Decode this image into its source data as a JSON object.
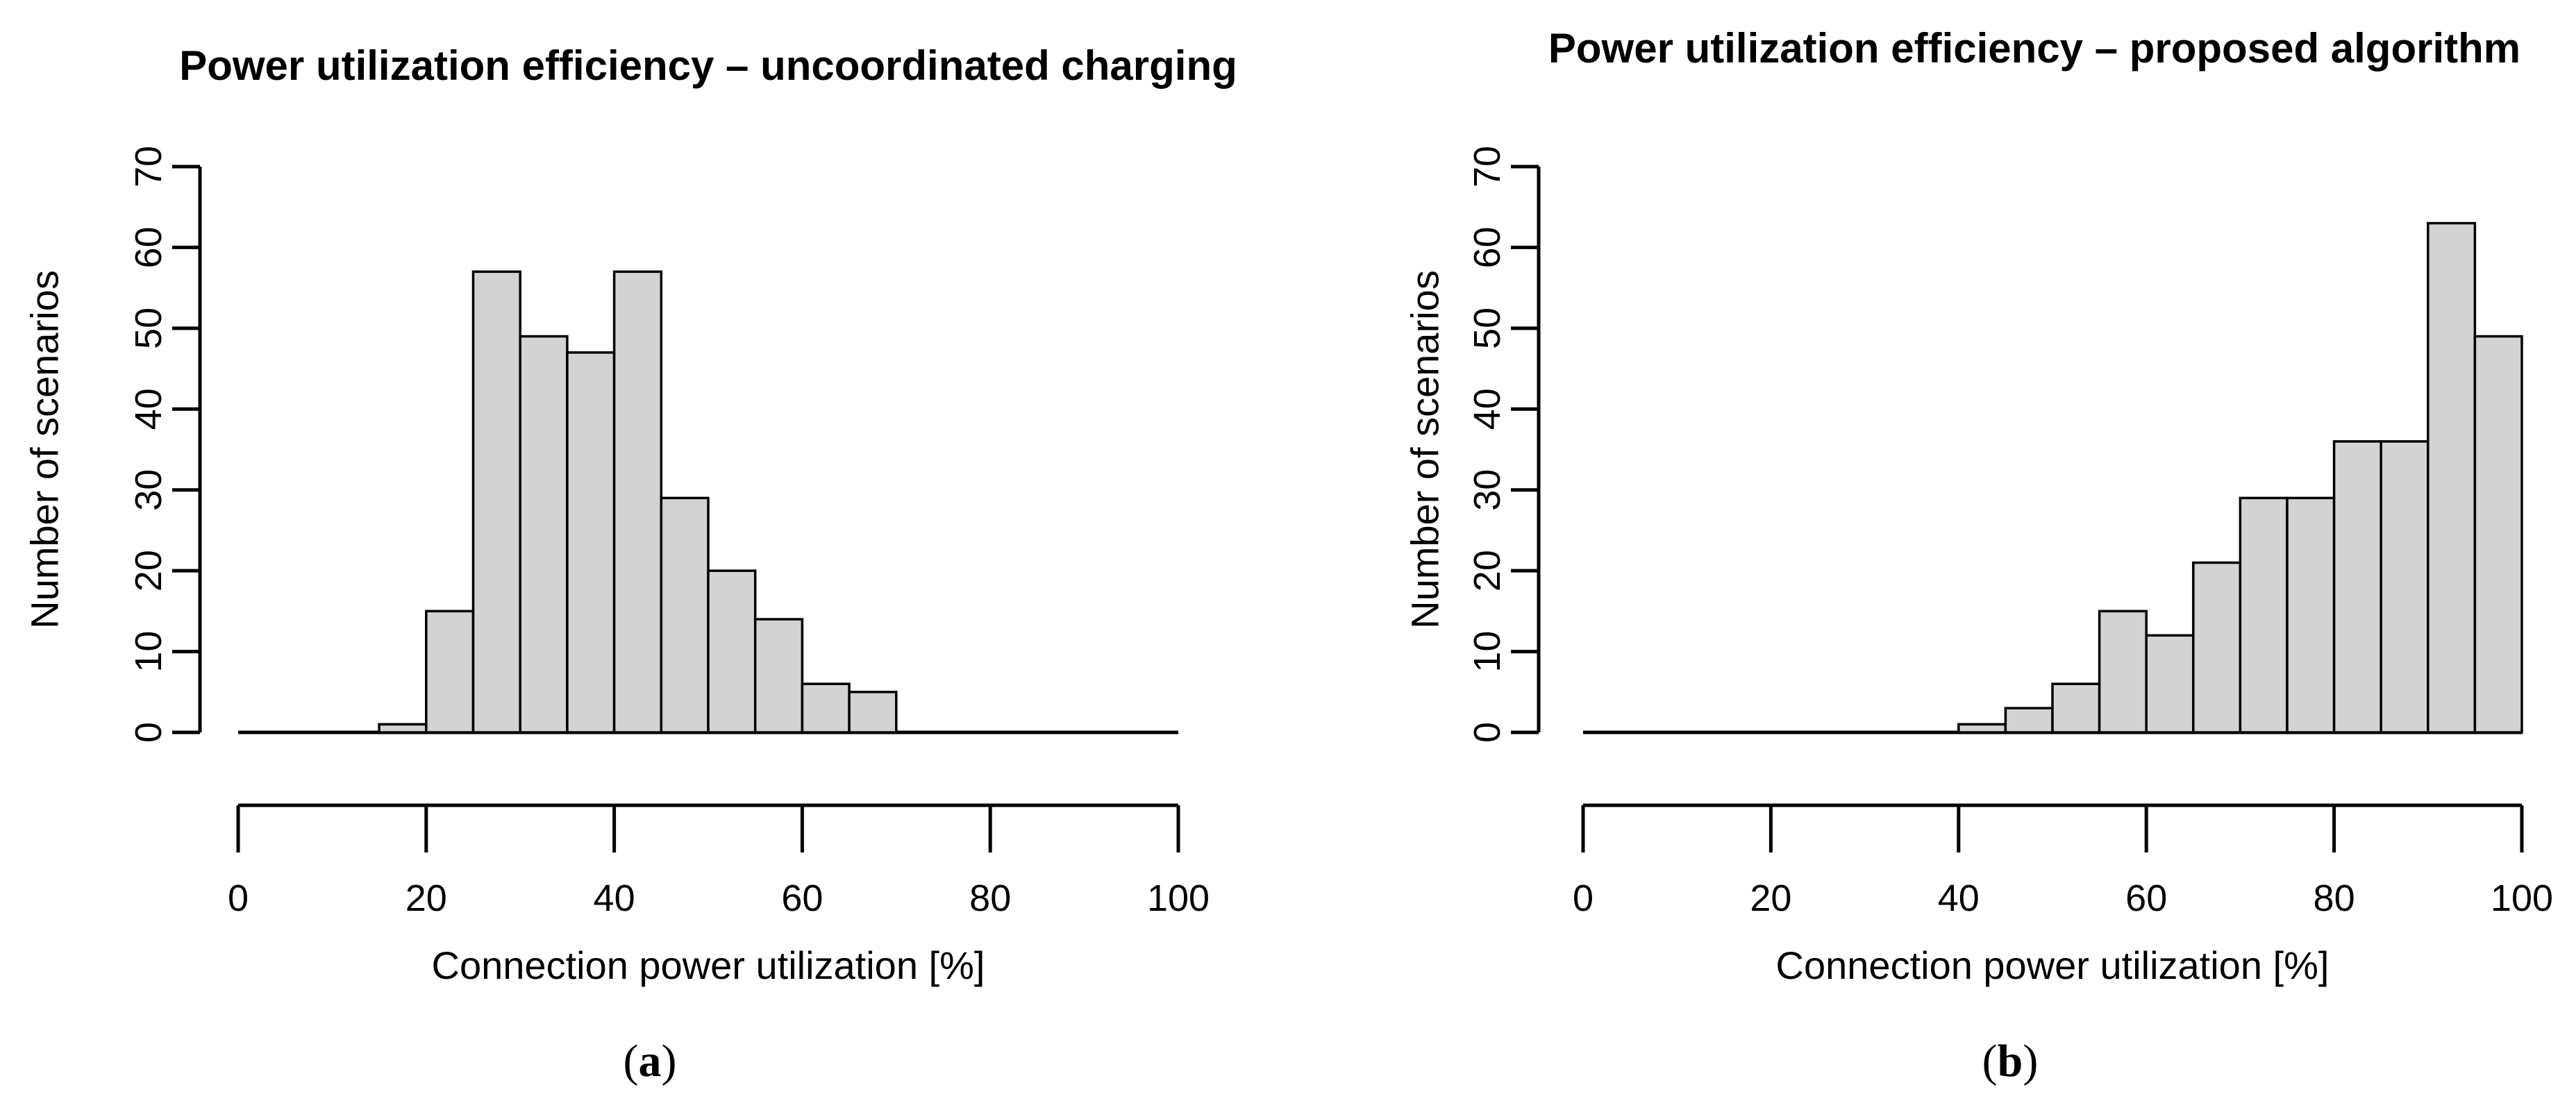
{
  "page": {
    "background": "#ffffff",
    "figure_kind": "two-panel R base-graphics histogram figure"
  },
  "chart_data": [
    {
      "type": "bar",
      "chart_kind": "histogram",
      "title": "Power utilization efficiency – uncoordinated charging",
      "xlabel": "Connection power utilization [%]",
      "ylabel": "Number of scenarios",
      "caption": {
        "open": "(",
        "letter": "a",
        "close": ")"
      },
      "xlim": [
        0,
        100
      ],
      "ylim": [
        0,
        70
      ],
      "x_ticks": [
        0,
        20,
        40,
        60,
        80,
        100
      ],
      "y_ticks": [
        0,
        10,
        20,
        30,
        40,
        50,
        60,
        70
      ],
      "bin_width": 5,
      "bins": [
        {
          "range": [
            15,
            20
          ],
          "count": 1
        },
        {
          "range": [
            20,
            25
          ],
          "count": 15
        },
        {
          "range": [
            25,
            30
          ],
          "count": 57
        },
        {
          "range": [
            30,
            35
          ],
          "count": 49
        },
        {
          "range": [
            35,
            40
          ],
          "count": 47
        },
        {
          "range": [
            40,
            45
          ],
          "count": 57
        },
        {
          "range": [
            45,
            50
          ],
          "count": 29
        },
        {
          "range": [
            50,
            55
          ],
          "count": 20
        },
        {
          "range": [
            55,
            60
          ],
          "count": 14
        },
        {
          "range": [
            60,
            65
          ],
          "count": 6
        },
        {
          "range": [
            65,
            70
          ],
          "count": 5
        }
      ],
      "total_scenarios": 300,
      "bar_fill": "#d3d3d3",
      "bar_stroke": "#000000",
      "axis_color": "#000000",
      "grid": false,
      "legend": null
    },
    {
      "type": "bar",
      "chart_kind": "histogram",
      "title": "Power utilization efficiency – proposed algorithm",
      "xlabel": "Connection power utilization [%]",
      "ylabel": "Number of scenarios",
      "caption": {
        "open": "(",
        "letter": "b",
        "close": ")"
      },
      "xlim": [
        0,
        100
      ],
      "ylim": [
        0,
        70
      ],
      "x_ticks": [
        0,
        20,
        40,
        60,
        80,
        100
      ],
      "y_ticks": [
        0,
        10,
        20,
        30,
        40,
        50,
        60,
        70
      ],
      "bin_width": 5,
      "bins": [
        {
          "range": [
            40,
            45
          ],
          "count": 1
        },
        {
          "range": [
            45,
            50
          ],
          "count": 3
        },
        {
          "range": [
            50,
            55
          ],
          "count": 6
        },
        {
          "range": [
            55,
            60
          ],
          "count": 15
        },
        {
          "range": [
            60,
            65
          ],
          "count": 12
        },
        {
          "range": [
            65,
            70
          ],
          "count": 21
        },
        {
          "range": [
            70,
            75
          ],
          "count": 29
        },
        {
          "range": [
            75,
            80
          ],
          "count": 29
        },
        {
          "range": [
            80,
            85
          ],
          "count": 36
        },
        {
          "range": [
            85,
            90
          ],
          "count": 36
        },
        {
          "range": [
            90,
            95
          ],
          "count": 63
        },
        {
          "range": [
            95,
            100
          ],
          "count": 49
        }
      ],
      "total_scenarios": 300,
      "bar_fill": "#d3d3d3",
      "bar_stroke": "#000000",
      "axis_color": "#000000",
      "grid": false,
      "legend": null
    }
  ]
}
